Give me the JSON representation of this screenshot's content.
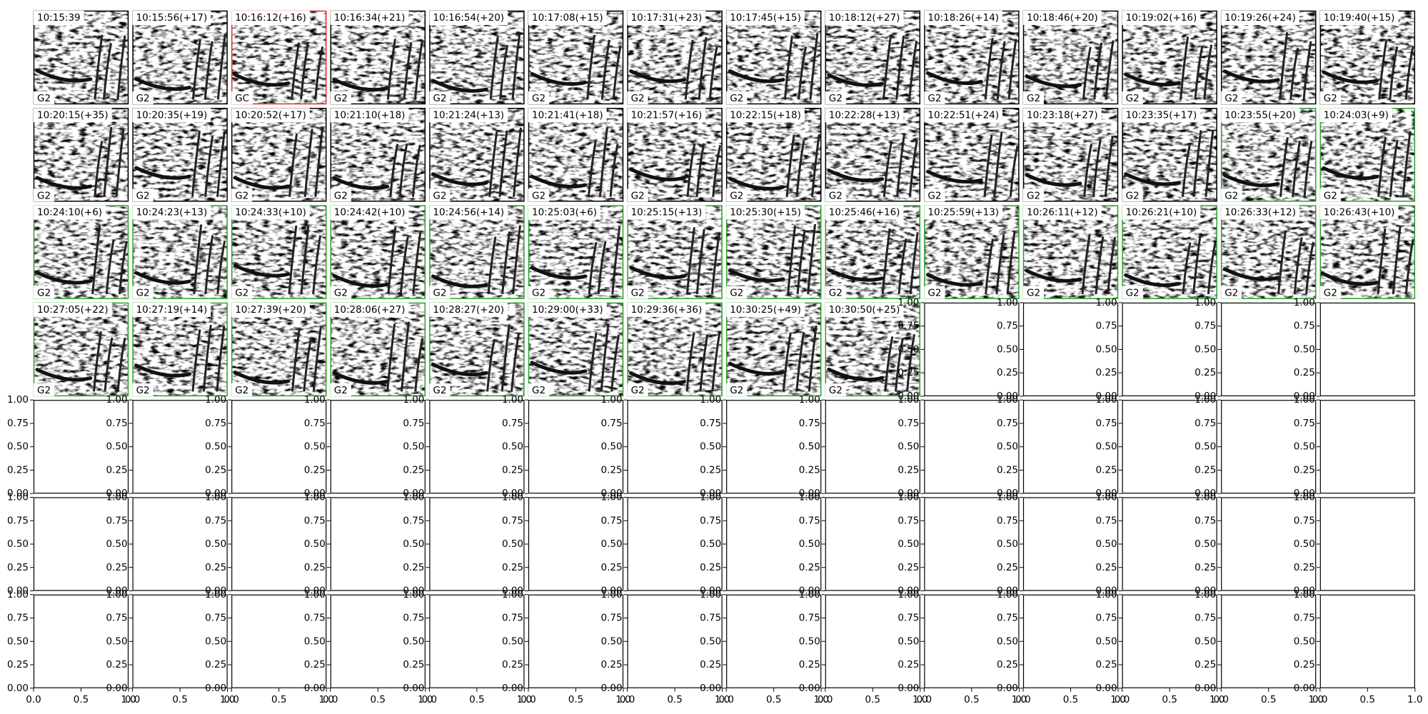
{
  "panels": [
    {
      "title": "10:15:39",
      "label": "G2",
      "border": "#000000"
    },
    {
      "title": "10:15:56(+17)",
      "label": "G2",
      "border": "#000000"
    },
    {
      "title": "10:16:12(+16)",
      "label": "GC",
      "border": "#e03030"
    },
    {
      "title": "10:16:34(+21)",
      "label": "G2",
      "border": "#000000"
    },
    {
      "title": "10:16:54(+20)",
      "label": "G2",
      "border": "#000000"
    },
    {
      "title": "10:17:08(+15)",
      "label": "G2",
      "border": "#000000"
    },
    {
      "title": "10:17:31(+23)",
      "label": "G2",
      "border": "#000000"
    },
    {
      "title": "10:17:45(+15)",
      "label": "G2",
      "border": "#000000"
    },
    {
      "title": "10:18:12(+27)",
      "label": "G2",
      "border": "#000000"
    },
    {
      "title": "10:18:26(+14)",
      "label": "G2",
      "border": "#000000"
    },
    {
      "title": "10:18:46(+20)",
      "label": "G2",
      "border": "#000000"
    },
    {
      "title": "10:19:02(+16)",
      "label": "G2",
      "border": "#000000"
    },
    {
      "title": "10:19:26(+24)",
      "label": "G2",
      "border": "#000000"
    },
    {
      "title": "10:19:40(+15)",
      "label": "G2",
      "border": "#000000"
    },
    {
      "title": "10:20:15(+35)",
      "label": "G2",
      "border": "#000000"
    },
    {
      "title": "10:20:35(+19)",
      "label": "G2",
      "border": "#000000"
    },
    {
      "title": "10:20:52(+17)",
      "label": "G2",
      "border": "#000000"
    },
    {
      "title": "10:21:10(+18)",
      "label": "G2",
      "border": "#000000"
    },
    {
      "title": "10:21:24(+13)",
      "label": "G2",
      "border": "#000000"
    },
    {
      "title": "10:21:41(+18)",
      "label": "G2",
      "border": "#000000"
    },
    {
      "title": "10:21:57(+16)",
      "label": "G2",
      "border": "#000000"
    },
    {
      "title": "10:22:15(+18)",
      "label": "G2",
      "border": "#000000"
    },
    {
      "title": "10:22:28(+13)",
      "label": "G2",
      "border": "#000000"
    },
    {
      "title": "10:22:51(+24)",
      "label": "G2",
      "border": "#000000"
    },
    {
      "title": "10:23:18(+27)",
      "label": "G2",
      "border": "#000000"
    },
    {
      "title": "10:23:35(+17)",
      "label": "G2",
      "border": "#000000"
    },
    {
      "title": "10:23:55(+20)",
      "label": "G2",
      "border": "#2ca02c"
    },
    {
      "title": "10:24:03(+9)",
      "label": "G2",
      "border": "#2ca02c"
    },
    {
      "title": "10:24:10(+6)",
      "label": "G2",
      "border": "#2ca02c"
    },
    {
      "title": "10:24:23(+13)",
      "label": "G2",
      "border": "#2ca02c"
    },
    {
      "title": "10:24:33(+10)",
      "label": "G2",
      "border": "#2ca02c"
    },
    {
      "title": "10:24:42(+10)",
      "label": "G2",
      "border": "#2ca02c"
    },
    {
      "title": "10:24:56(+14)",
      "label": "G2",
      "border": "#2ca02c"
    },
    {
      "title": "10:25:03(+6)",
      "label": "G2",
      "border": "#2ca02c"
    },
    {
      "title": "10:25:15(+13)",
      "label": "G2",
      "border": "#2ca02c"
    },
    {
      "title": "10:25:30(+15)",
      "label": "G2",
      "border": "#2ca02c"
    },
    {
      "title": "10:25:46(+16)",
      "label": "G2",
      "border": "#2ca02c"
    },
    {
      "title": "10:25:59(+13)",
      "label": "G2",
      "border": "#2ca02c"
    },
    {
      "title": "10:26:11(+12)",
      "label": "G2",
      "border": "#2ca02c"
    },
    {
      "title": "10:26:21(+10)",
      "label": "G2",
      "border": "#2ca02c"
    },
    {
      "title": "10:26:33(+12)",
      "label": "G2",
      "border": "#2ca02c"
    },
    {
      "title": "10:26:43(+10)",
      "label": "G2",
      "border": "#2ca02c"
    },
    {
      "title": "10:27:05(+22)",
      "label": "G2",
      "border": "#2ca02c"
    },
    {
      "title": "10:27:19(+14)",
      "label": "G2",
      "border": "#2ca02c"
    },
    {
      "title": "10:27:39(+20)",
      "label": "G2",
      "border": "#2ca02c"
    },
    {
      "title": "10:28:06(+27)",
      "label": "G2",
      "border": "#2ca02c"
    },
    {
      "title": "10:28:27(+20)",
      "label": "G2",
      "border": "#2ca02c"
    },
    {
      "title": "10:29:00(+33)",
      "label": "G2",
      "border": "#2ca02c"
    },
    {
      "title": "10:29:36(+36)",
      "label": "G2",
      "border": "#2ca02c"
    },
    {
      "title": "10:30:25(+49)",
      "label": "G2",
      "border": "#2ca02c"
    },
    {
      "title": "10:30:50(+25)",
      "label": "G2",
      "border": "#2ca02c"
    }
  ],
  "empty_axes": {
    "yticks": [
      {
        "value": 0,
        "label": "0.00"
      },
      {
        "value": 0.25,
        "label": "0.25"
      },
      {
        "value": 0.5,
        "label": "0.50"
      },
      {
        "value": 0.75,
        "label": "0.75"
      },
      {
        "value": 1,
        "label": "1.00"
      }
    ],
    "xticks": [
      {
        "value": 0,
        "label": "0.0"
      },
      {
        "value": 0.5,
        "label": "0.5"
      },
      {
        "value": 1,
        "label": "1.0"
      }
    ]
  }
}
